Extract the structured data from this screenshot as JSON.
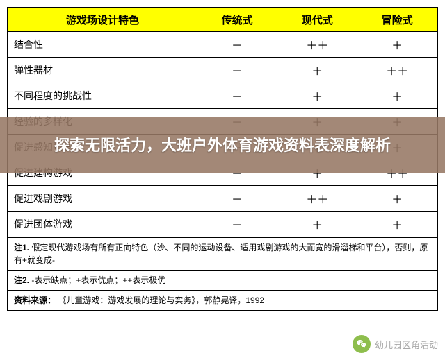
{
  "table": {
    "header_bg": "#ffff00",
    "columns": [
      "游戏场设计特色",
      "传统式",
      "现代式",
      "冒险式"
    ],
    "rows": [
      {
        "label": "结合性",
        "cells": [
          "－",
          "＋＋",
          "＋"
        ]
      },
      {
        "label": "弹性器材",
        "cells": [
          "－",
          "＋",
          "＋＋"
        ]
      },
      {
        "label": "不同程度的挑战性",
        "cells": [
          "－",
          "＋",
          "＋"
        ]
      },
      {
        "label": "经验的多样化",
        "cells": [
          "－",
          "＋",
          "＋"
        ]
      },
      {
        "label": "促进感知觉发展",
        "cells": [
          "－",
          "＋",
          "＋"
        ]
      },
      {
        "label": "促进建构游戏",
        "cells": [
          "－",
          "＋",
          "＋＋"
        ]
      },
      {
        "label": "促进戏剧游戏",
        "cells": [
          "－",
          "＋＋",
          "＋"
        ]
      },
      {
        "label": "促进团体游戏",
        "cells": [
          "－",
          "＋",
          "＋"
        ]
      }
    ]
  },
  "notes": {
    "n1_label": "注1.",
    "n1_text": " 假定现代游戏场有所有正向特色（沙、不同的运动设备、适用戏剧游戏的大而宽的滑溜梯和平台），否则，原有+就变成-",
    "n2_label": "注2.",
    "n2_text": " -表示缺点；+表示优点；++表示极优",
    "src_label": "资料来源：",
    "src_text": " 《儿童游戏：游戏发展的理论与实务》，郭静晃译，1992"
  },
  "overlay": {
    "text": "探索无限活力，大班户外体育游戏资料表深度解析"
  },
  "watermark": {
    "text": "幼儿园区角活动"
  }
}
